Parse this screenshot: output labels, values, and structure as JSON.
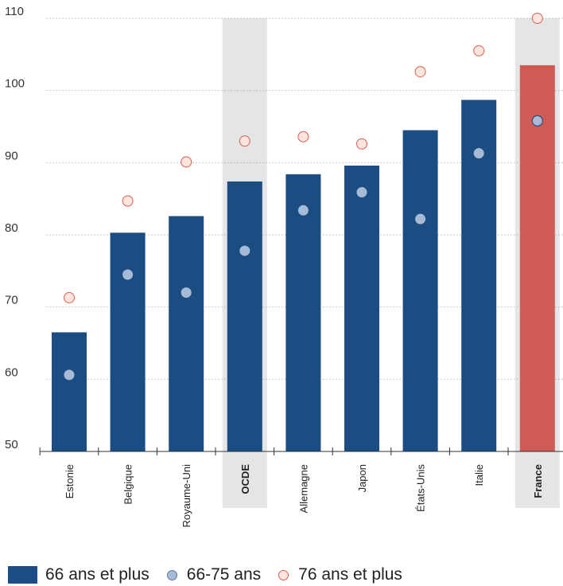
{
  "chart_data": {
    "type": "bar",
    "categories": [
      "Estonie",
      "Belgique",
      "Royaume-Uni",
      "OCDE",
      "Allemagne",
      "Japon",
      "États-Unis",
      "Italie",
      "France"
    ],
    "emphasized_categories": [
      "OCDE",
      "France"
    ],
    "series": [
      {
        "name": "66 ans et plus",
        "kind": "bar",
        "values": [
          66.5,
          80.3,
          82.6,
          87.4,
          88.4,
          89.6,
          94.5,
          98.7,
          103.5
        ],
        "color": "#1b4d82"
      },
      {
        "name": "66-75 ans",
        "kind": "marker",
        "values": [
          60.6,
          74.5,
          72.0,
          77.8,
          83.4,
          85.9,
          82.2,
          91.3,
          95.8
        ],
        "color": "#a7bad6"
      },
      {
        "name": "76 ans et plus",
        "kind": "marker",
        "values": [
          71.3,
          84.7,
          90.1,
          93.0,
          93.6,
          92.6,
          102.6,
          105.5,
          110.0
        ],
        "color": "#fce4df",
        "stroke": "#d9604f"
      }
    ],
    "highlight_bar_color": "#cf5b54",
    "yticks": [
      50,
      60,
      70,
      80,
      90,
      100,
      110
    ],
    "ylim": [
      50,
      110
    ],
    "grid": true,
    "legend_position": "bottom-left"
  }
}
